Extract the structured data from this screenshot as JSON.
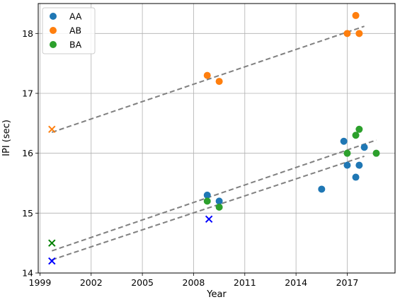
{
  "chart_data": {
    "type": "scatter",
    "title": "",
    "xlabel": "Year",
    "ylabel": "IPI (sec)",
    "xlim": [
      1998.9,
      2019.8
    ],
    "ylim": [
      14.0,
      18.5
    ],
    "xticks": [
      1999,
      2002,
      2005,
      2008,
      2011,
      2014,
      2017
    ],
    "yticks": [
      14,
      15,
      16,
      17,
      18
    ],
    "grid": true,
    "legend": "top-left",
    "series": [
      {
        "name": "AA",
        "color": "#1f77b4",
        "marker": "circle",
        "points": [
          [
            2008.8,
            15.3
          ],
          [
            2009.5,
            15.2
          ],
          [
            2015.5,
            15.4
          ],
          [
            2016.8,
            16.2
          ],
          [
            2017.0,
            15.8
          ],
          [
            2017.5,
            15.6
          ],
          [
            2017.7,
            15.8
          ],
          [
            2018.0,
            16.1
          ]
        ]
      },
      {
        "name": "AB",
        "color": "#ff7f0e",
        "marker": "circle",
        "points": [
          [
            2008.8,
            17.3
          ],
          [
            2009.5,
            17.2
          ],
          [
            2017.0,
            18.0
          ],
          [
            2017.5,
            18.3
          ],
          [
            2017.7,
            18.0
          ]
        ]
      },
      {
        "name": "BA",
        "color": "#2ca02c",
        "marker": "circle",
        "points": [
          [
            2008.8,
            15.2
          ],
          [
            2009.5,
            15.1
          ],
          [
            2017.0,
            16.0
          ],
          [
            2017.5,
            16.3
          ],
          [
            2017.7,
            16.4
          ],
          [
            2018.7,
            16.0
          ]
        ]
      }
    ],
    "cross_markers": [
      {
        "color": "#0000ff",
        "points": [
          [
            1999.7,
            14.2
          ],
          [
            2008.9,
            14.9
          ]
        ]
      },
      {
        "color": "#ff7f0e",
        "points": [
          [
            1999.7,
            16.4
          ]
        ]
      },
      {
        "color": "#008000",
        "points": [
          [
            1999.7,
            14.5
          ]
        ]
      }
    ],
    "trend_lines": [
      {
        "color": "#808080",
        "from": [
          1999.7,
          16.35
        ],
        "to": [
          2018.0,
          18.12
        ]
      },
      {
        "color": "#808080",
        "from": [
          1999.7,
          14.37
        ],
        "to": [
          2018.7,
          16.22
        ]
      },
      {
        "color": "#808080",
        "from": [
          1999.7,
          14.22
        ],
        "to": [
          2018.0,
          15.95
        ]
      }
    ]
  }
}
